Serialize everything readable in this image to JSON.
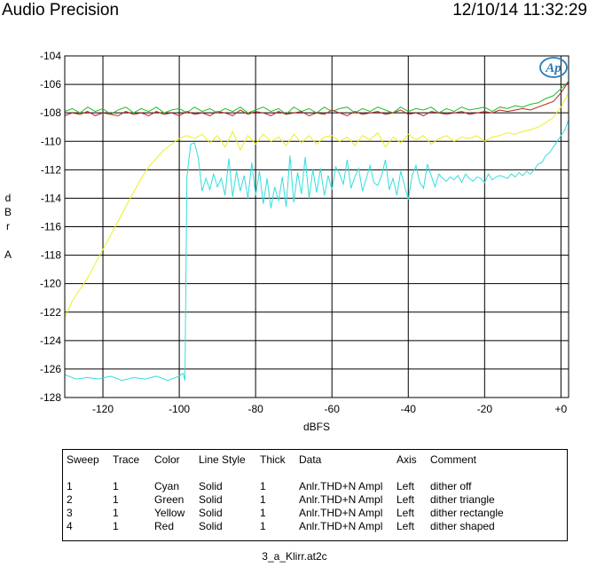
{
  "header": {
    "title": "Audio Precision",
    "datetime": "12/10/14 11:32:29"
  },
  "logo_text": "Ap",
  "chart_data": {
    "type": "line",
    "xlabel": "dBFS",
    "ylabel": "dBr A",
    "ylabel_lines": [
      "d",
      "B",
      "r",
      "",
      "A"
    ],
    "xlim": [
      -130,
      2
    ],
    "ylim": [
      -128,
      -104
    ],
    "x_ticks": [
      -120,
      -100,
      -80,
      -60,
      -40,
      -20,
      0
    ],
    "x_tick_labels": [
      "-120",
      "-100",
      "-80",
      "-60",
      "-40",
      "-20",
      "+0"
    ],
    "y_ticks": [
      -104,
      -106,
      -108,
      -110,
      -112,
      -114,
      -116,
      -118,
      -120,
      -122,
      -124,
      -126,
      -128
    ],
    "y_tick_labels": [
      "-104",
      "-106",
      "-108",
      "-110",
      "-112",
      "-114",
      "-116",
      "-118",
      "-120",
      "-122",
      "-124",
      "-126",
      "-128"
    ],
    "grid": true,
    "series": [
      {
        "name": "dither off",
        "color": "#33dddd",
        "x": [
          -130,
          -127,
          -124,
          -121,
          -118,
          -115,
          -112,
          -109,
          -106,
          -103,
          -100,
          -99,
          -98.5,
          -98,
          -97,
          -96,
          -95,
          -94,
          -93,
          -92,
          -91,
          -90,
          -89,
          -88,
          -87,
          -86,
          -85,
          -84,
          -83,
          -82,
          -81,
          -80,
          -79,
          -78,
          -77,
          -76,
          -75,
          -74,
          -73,
          -72,
          -71,
          -70,
          -69,
          -68,
          -67,
          -66,
          -65,
          -64,
          -63,
          -62,
          -61,
          -60,
          -59,
          -58,
          -57,
          -56,
          -55,
          -54,
          -53,
          -52,
          -51,
          -50,
          -49,
          -48,
          -47,
          -46,
          -45,
          -44,
          -43,
          -42,
          -41,
          -40,
          -39,
          -38,
          -37,
          -36,
          -35,
          -34,
          -33,
          -32,
          -31,
          -30,
          -29,
          -28,
          -27,
          -26,
          -25,
          -24,
          -23,
          -22,
          -21,
          -20,
          -19,
          -18,
          -17,
          -16,
          -15,
          -14,
          -13,
          -12,
          -11,
          -10,
          -9,
          -8,
          -7,
          -6,
          -5,
          -4,
          -3,
          -2,
          -1,
          0,
          1,
          2
        ],
        "y": [
          -126.4,
          -126.7,
          -126.6,
          -126.7,
          -126.5,
          -126.8,
          -126.6,
          -126.7,
          -126.5,
          -126.8,
          -126.5,
          -126.3,
          -126.8,
          -112.5,
          -110.2,
          -110.1,
          -111.2,
          -113.5,
          -112.6,
          -113.4,
          -112.3,
          -113.2,
          -112.6,
          -113.8,
          -111.2,
          -113.9,
          -112.1,
          -113.5,
          -112.4,
          -114.0,
          -111.5,
          -113.8,
          -112.1,
          -114.4,
          -112.6,
          -114.7,
          -113.2,
          -114.2,
          -112.5,
          -114.6,
          -111.0,
          -114.3,
          -112.2,
          -113.7,
          -111.1,
          -114.0,
          -112.0,
          -113.6,
          -111.9,
          -113.8,
          -112.4,
          -113.4,
          -111.8,
          -112.3,
          -113.0,
          -111.3,
          -113.3,
          -112.5,
          -111.9,
          -113.5,
          -112.6,
          -111.7,
          -112.9,
          -113.1,
          -112.4,
          -111.3,
          -113.4,
          -112.6,
          -113.8,
          -112.1,
          -113.1,
          -114.1,
          -112.4,
          -111.7,
          -112.9,
          -113.3,
          -111.6,
          -112.4,
          -113.2,
          -112.3,
          -112.6,
          -112.8,
          -112.5,
          -112.7,
          -112.4,
          -112.9,
          -112.3,
          -112.6,
          -112.8,
          -112.5,
          -112.6,
          -112.9,
          -112.3,
          -112.7,
          -112.5,
          -112.4,
          -112.5,
          -112.6,
          -112.3,
          -112.5,
          -112.2,
          -112.4,
          -112.1,
          -112.3,
          -112.0,
          -111.6,
          -111.5,
          -111.0,
          -110.8,
          -110.4,
          -110.0,
          -109.6,
          -109.2,
          -108.5
        ]
      },
      {
        "name": "dither triangle",
        "color": "#22bb22",
        "x": [
          -130,
          -128,
          -126,
          -124,
          -122,
          -120,
          -118,
          -116,
          -114,
          -112,
          -110,
          -108,
          -106,
          -104,
          -102,
          -100,
          -98,
          -96,
          -94,
          -92,
          -90,
          -88,
          -86,
          -84,
          -82,
          -80,
          -78,
          -76,
          -74,
          -72,
          -70,
          -68,
          -66,
          -64,
          -62,
          -60,
          -58,
          -56,
          -54,
          -52,
          -50,
          -48,
          -46,
          -44,
          -42,
          -40,
          -38,
          -36,
          -34,
          -32,
          -30,
          -28,
          -26,
          -24,
          -22,
          -20,
          -18,
          -16,
          -14,
          -12,
          -10,
          -8,
          -6,
          -4,
          -2,
          0,
          2
        ],
        "y": [
          -107.9,
          -107.7,
          -108.0,
          -107.6,
          -107.9,
          -107.7,
          -108.1,
          -107.8,
          -107.6,
          -108.0,
          -107.7,
          -107.9,
          -107.6,
          -108.0,
          -107.8,
          -107.7,
          -108.0,
          -107.6,
          -107.9,
          -107.7,
          -108.0,
          -107.7,
          -107.9,
          -107.6,
          -108.0,
          -107.8,
          -107.6,
          -107.9,
          -107.7,
          -108.1,
          -107.6,
          -107.9,
          -107.7,
          -108.0,
          -107.6,
          -107.9,
          -107.7,
          -107.6,
          -108.0,
          -107.7,
          -107.9,
          -107.6,
          -107.8,
          -108.0,
          -107.6,
          -107.9,
          -107.7,
          -107.8,
          -107.6,
          -108.0,
          -107.7,
          -107.9,
          -107.6,
          -107.8,
          -107.7,
          -107.6,
          -107.9,
          -107.6,
          -107.7,
          -107.5,
          -107.6,
          -107.4,
          -107.3,
          -107.0,
          -106.8,
          -106.3,
          -105.8
        ]
      },
      {
        "name": "dither rectangle",
        "color": "#eeee22",
        "x": [
          -130,
          -128,
          -126,
          -124,
          -122,
          -120,
          -118,
          -116,
          -114,
          -112,
          -110,
          -108,
          -106,
          -104,
          -102,
          -100,
          -98,
          -96,
          -94,
          -92,
          -90,
          -88,
          -86,
          -84,
          -82,
          -80,
          -78,
          -76,
          -74,
          -72,
          -70,
          -68,
          -66,
          -64,
          -62,
          -60,
          -58,
          -56,
          -54,
          -52,
          -50,
          -48,
          -46,
          -44,
          -42,
          -40,
          -38,
          -36,
          -34,
          -32,
          -30,
          -28,
          -26,
          -24,
          -22,
          -20,
          -18,
          -16,
          -14,
          -12,
          -10,
          -8,
          -6,
          -4,
          -2,
          0,
          2
        ],
        "y": [
          -122.4,
          -121.2,
          -120.4,
          -119.6,
          -118.6,
          -117.6,
          -116.6,
          -115.6,
          -114.6,
          -113.6,
          -112.6,
          -111.8,
          -111.2,
          -110.6,
          -110.2,
          -109.8,
          -109.6,
          -109.8,
          -109.5,
          -110.1,
          -109.6,
          -110.4,
          -109.3,
          -110.6,
          -109.6,
          -110.2,
          -109.5,
          -110.0,
          -109.7,
          -110.3,
          -109.5,
          -110.1,
          -109.6,
          -110.2,
          -109.7,
          -109.6,
          -110.0,
          -109.7,
          -110.3,
          -109.6,
          -109.9,
          -109.4,
          -110.4,
          -109.7,
          -110.1,
          -109.5,
          -109.9,
          -109.6,
          -110.2,
          -109.8,
          -109.6,
          -110.0,
          -109.7,
          -109.8,
          -109.6,
          -110.0,
          -109.7,
          -109.6,
          -109.4,
          -109.5,
          -109.3,
          -109.2,
          -109.0,
          -108.7,
          -108.3,
          -107.6,
          -106.6
        ]
      },
      {
        "name": "dither shaped",
        "color": "#bb2222",
        "x": [
          -130,
          -128,
          -126,
          -124,
          -122,
          -120,
          -118,
          -116,
          -114,
          -112,
          -110,
          -108,
          -106,
          -104,
          -102,
          -100,
          -98,
          -96,
          -94,
          -92,
          -90,
          -88,
          -86,
          -84,
          -82,
          -80,
          -78,
          -76,
          -74,
          -72,
          -70,
          -68,
          -66,
          -64,
          -62,
          -60,
          -58,
          -56,
          -54,
          -52,
          -50,
          -48,
          -46,
          -44,
          -42,
          -40,
          -38,
          -36,
          -34,
          -32,
          -30,
          -28,
          -26,
          -24,
          -22,
          -20,
          -18,
          -16,
          -14,
          -12,
          -10,
          -8,
          -6,
          -4,
          -2,
          0,
          2
        ],
        "y": [
          -108.2,
          -108.0,
          -108.1,
          -107.9,
          -108.2,
          -108.0,
          -108.1,
          -108.2,
          -107.9,
          -108.1,
          -108.0,
          -108.2,
          -107.9,
          -108.1,
          -108.0,
          -108.2,
          -107.9,
          -108.1,
          -108.0,
          -108.2,
          -107.9,
          -108.0,
          -108.2,
          -107.8,
          -108.1,
          -107.9,
          -108.0,
          -108.2,
          -107.9,
          -108.1,
          -108.0,
          -107.9,
          -108.2,
          -108.0,
          -108.1,
          -107.8,
          -108.0,
          -108.2,
          -107.9,
          -108.1,
          -108.0,
          -107.9,
          -108.1,
          -108.0,
          -107.8,
          -108.1,
          -108.0,
          -108.2,
          -107.9,
          -108.0,
          -108.1,
          -108.0,
          -107.9,
          -108.1,
          -108.0,
          -107.9,
          -108.0,
          -107.8,
          -107.9,
          -107.8,
          -107.7,
          -107.8,
          -107.6,
          -107.4,
          -107.2,
          -106.6,
          -105.8
        ]
      }
    ]
  },
  "table": {
    "headers": [
      "Sweep",
      "Trace",
      "Color",
      "Line Style",
      "Thick",
      "Data",
      "Axis",
      "Comment"
    ],
    "rows": [
      [
        "1",
        "1",
        "Cyan",
        "Solid",
        "1",
        "Anlr.THD+N Ampl",
        "Left",
        "dither off"
      ],
      [
        "2",
        "1",
        "Green",
        "Solid",
        "1",
        "Anlr.THD+N Ampl",
        "Left",
        "dither triangle"
      ],
      [
        "3",
        "1",
        "Yellow",
        "Solid",
        "1",
        "Anlr.THD+N Ampl",
        "Left",
        "dither rectangle"
      ],
      [
        "4",
        "1",
        "Red",
        "Solid",
        "1",
        "Anlr.THD+N Ampl",
        "Left",
        "dither shaped"
      ]
    ]
  },
  "footer": "3_a_Klirr.at2c"
}
